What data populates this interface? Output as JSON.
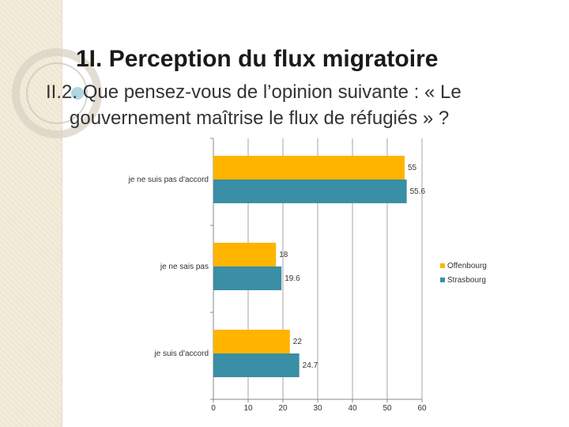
{
  "slide": {
    "title": "1I.  Perception du flux migratoire",
    "subtitle_line1": "II.2. Que pensez-vous de l’opinion suivante : « Le",
    "subtitle_line2": "gouvernement maîtrise le flux de réfugiés » ?"
  },
  "colors": {
    "background": "#ffffff",
    "strip": "#f3ecd9",
    "offenbourg": "#ffb400",
    "strasbourg": "#3a8ea5"
  },
  "chart_data": {
    "type": "bar",
    "orientation": "horizontal",
    "categories": [
      "je ne suis pas d'accord",
      "je ne sais pas",
      "je suis d'accord"
    ],
    "series": [
      {
        "name": "Offenbourg",
        "values": [
          55,
          18,
          22
        ],
        "value_labels": [
          "55",
          "18",
          "22"
        ],
        "color": "#ffb400"
      },
      {
        "name": "Strasbourg",
        "values": [
          55.6,
          19.6,
          24.7
        ],
        "value_labels": [
          "55.6",
          "19.6",
          "24.7"
        ],
        "color": "#3a8ea5"
      }
    ],
    "xlim": [
      0,
      60
    ],
    "x_ticks": [
      0,
      10,
      20,
      30,
      40,
      50,
      60
    ],
    "x_tick_labels": [
      "0",
      "10",
      "20",
      "30",
      "40",
      "50",
      "60"
    ],
    "grid": true,
    "legend_position": "right"
  }
}
